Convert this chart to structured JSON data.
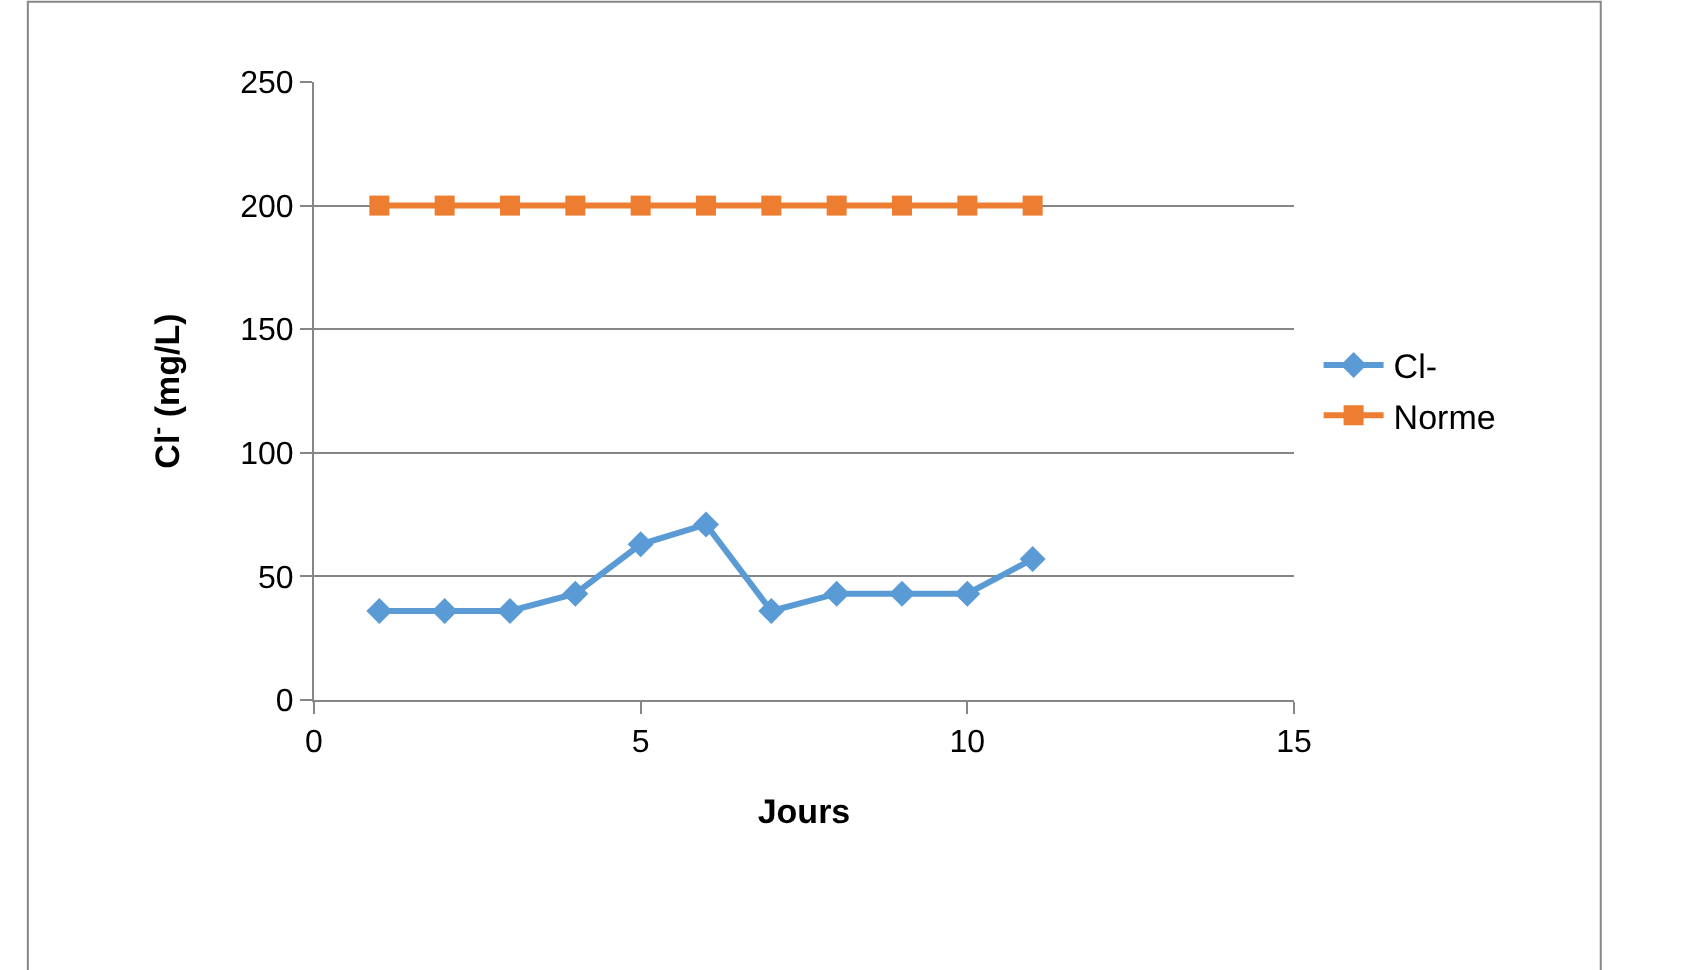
{
  "chart_data": {
    "type": "line",
    "xlabel": "Jours",
    "ylabel": "Cl$^{-}$ (mg/L)",
    "x": [
      1,
      2,
      3,
      4,
      5,
      6,
      7,
      8,
      9,
      10,
      11
    ],
    "series": [
      {
        "name": "Cl-",
        "color": "#5b9bd5",
        "marker": "diamond",
        "values": [
          36,
          36,
          36,
          43,
          63,
          71,
          36,
          43,
          43,
          43,
          57
        ]
      },
      {
        "name": "Norme",
        "color": "#ed7d31",
        "marker": "square",
        "values": [
          200,
          200,
          200,
          200,
          200,
          200,
          200,
          200,
          200,
          200,
          200
        ]
      }
    ],
    "xlim": [
      0,
      15
    ],
    "xticks": [
      0,
      5,
      10,
      15
    ],
    "ylim": [
      0,
      250
    ],
    "yticks": [
      0,
      50,
      100,
      150,
      200,
      250
    ],
    "grid": "y",
    "legend": "right",
    "line_style": "solid"
  }
}
